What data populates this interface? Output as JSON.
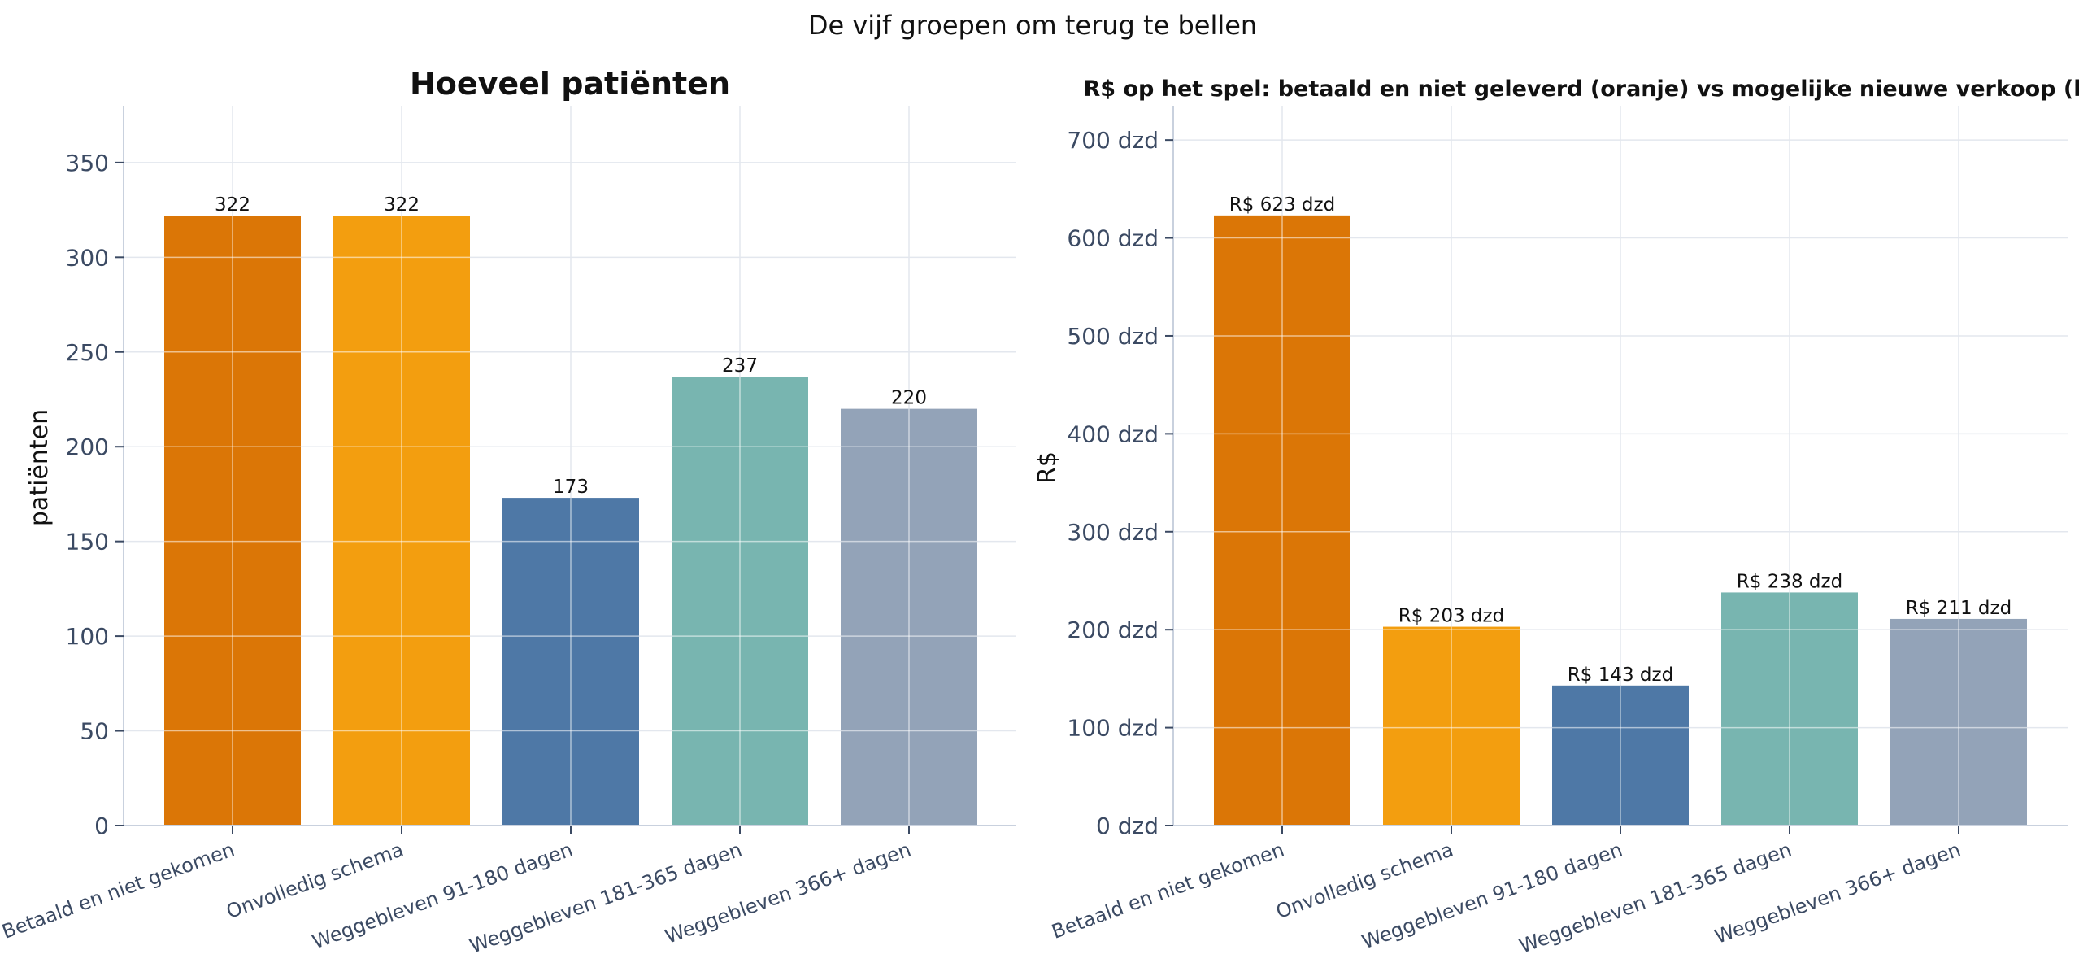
{
  "suptitle": "De vijf groepen om terug te bellen",
  "chart_data": [
    {
      "type": "bar",
      "title": "Hoeveel patiënten",
      "xlabel": "",
      "ylabel": "patiënten",
      "categories": [
        "Betaald en niet gekomen",
        "Onvolledig schema",
        "Weggebleven 91-180 dagen",
        "Weggebleven 181-365 dagen",
        "Weggebleven 366+ dagen"
      ],
      "values": [
        322,
        322,
        173,
        237,
        220
      ],
      "value_labels": [
        "322",
        "322",
        "173",
        "237",
        "220"
      ],
      "colors": [
        "#db7606",
        "#f39e0f",
        "#4e78a6",
        "#78b5b0",
        "#93a3b8"
      ],
      "yticks": [
        0,
        50,
        100,
        150,
        200,
        250,
        300,
        350
      ],
      "ytick_labels": [
        "0",
        "50",
        "100",
        "150",
        "200",
        "250",
        "300",
        "350"
      ],
      "ylim": [
        0,
        380
      ],
      "grid": true,
      "legend": "none"
    },
    {
      "type": "bar",
      "title": "R$ op het spel: betaald en niet geleverd (oranje) vs mogelijke nieuwe verkoop (blauw)",
      "xlabel": "",
      "ylabel": "R$",
      "categories": [
        "Betaald en niet gekomen",
        "Onvolledig schema",
        "Weggebleven 91-180 dagen",
        "Weggebleven 181-365 dagen",
        "Weggebleven 366+ dagen"
      ],
      "values": [
        623,
        203,
        143,
        238,
        211
      ],
      "value_labels": [
        "R$ 623 dzd",
        "R$ 203 dzd",
        "R$ 143 dzd",
        "R$ 238 dzd",
        "R$ 211 dzd"
      ],
      "colors": [
        "#db7606",
        "#f39e0f",
        "#4e78a6",
        "#78b5b0",
        "#93a3b8"
      ],
      "yticks": [
        0,
        100,
        200,
        300,
        400,
        500,
        600,
        700
      ],
      "ytick_labels": [
        "0 dzd",
        "100 dzd",
        "200 dzd",
        "300 dzd",
        "400 dzd",
        "500 dzd",
        "600 dzd",
        "700 dzd"
      ],
      "ylim": [
        0,
        735
      ],
      "grid": true,
      "legend": "none"
    }
  ]
}
